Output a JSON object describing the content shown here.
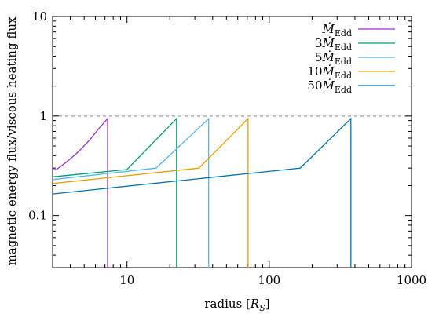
{
  "chart_data": {
    "type": "line",
    "xlabel": "radius [R_S]",
    "xlabel_parts": {
      "main": "radius [",
      "var": "R",
      "sub": "S",
      "close": "]"
    },
    "ylabel": "magnetic energy flux/viscous heating flux",
    "xscale": "log",
    "yscale": "log",
    "xlim": [
      3,
      1000
    ],
    "ylim": [
      0.03,
      10
    ],
    "x_ticks": [
      {
        "value": 10,
        "label": "10"
      },
      {
        "value": 100,
        "label": "100"
      },
      {
        "value": 1000,
        "label": "1000"
      }
    ],
    "y_ticks": [
      {
        "value": 0.1,
        "label": "0.1"
      },
      {
        "value": 1,
        "label": "1"
      },
      {
        "value": 10,
        "label": "10"
      }
    ],
    "grid": false,
    "legend_position": "top-right",
    "reference_line": {
      "y": 1,
      "style": "dashed",
      "color": "#888888"
    },
    "series": [
      {
        "name": "Ṁ_Edd",
        "legend": {
          "coef": "",
          "sym": "M",
          "sub": "Edd"
        },
        "color": "#9a32cd",
        "points": [
          [
            3.0,
            0.29
          ],
          [
            3.2,
            0.29
          ],
          [
            3.4,
            0.31
          ],
          [
            3.8,
            0.35
          ],
          [
            4.5,
            0.43
          ],
          [
            5.5,
            0.58
          ],
          [
            6.5,
            0.78
          ],
          [
            7.3,
            0.94
          ],
          [
            7.3,
            0.03
          ]
        ]
      },
      {
        "name": "3Ṁ_Edd",
        "legend": {
          "coef": "3",
          "sym": "M",
          "sub": "Edd"
        },
        "color": "#009e73",
        "points": [
          [
            3.0,
            0.245
          ],
          [
            10.0,
            0.29
          ],
          [
            22.3,
            0.94
          ],
          [
            22.3,
            0.03
          ]
        ]
      },
      {
        "name": "5Ṁ_Edd",
        "legend": {
          "coef": "5",
          "sym": "M",
          "sub": "Edd"
        },
        "color": "#56b4e9",
        "points": [
          [
            3.0,
            0.23
          ],
          [
            16.0,
            0.3
          ],
          [
            37.5,
            0.94
          ],
          [
            37.5,
            0.03
          ]
        ]
      },
      {
        "name": "10Ṁ_Edd",
        "legend": {
          "coef": "10",
          "sym": "M",
          "sub": "Edd"
        },
        "color": "#e69f00",
        "points": [
          [
            3.0,
            0.21
          ],
          [
            32.0,
            0.3
          ],
          [
            71.0,
            0.94
          ],
          [
            71.0,
            0.03
          ]
        ]
      },
      {
        "name": "50Ṁ_Edd",
        "legend": {
          "coef": "50",
          "sym": "M",
          "sub": "Edd"
        },
        "color": "#0072b2",
        "points": [
          [
            3.0,
            0.165
          ],
          [
            165.0,
            0.3
          ],
          [
            375.0,
            0.94
          ],
          [
            375.0,
            0.03
          ]
        ]
      }
    ]
  }
}
